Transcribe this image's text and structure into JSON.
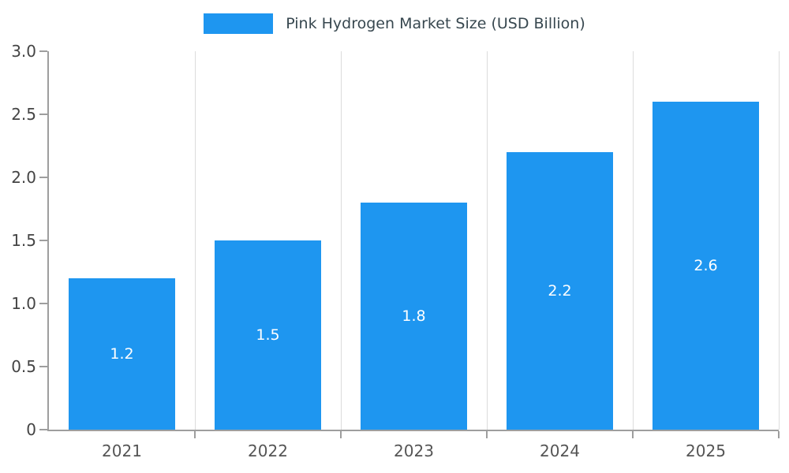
{
  "chart_data": {
    "type": "bar",
    "title": "Pink Hydrogen Market Size (USD Billion)",
    "categories": [
      "2021",
      "2022",
      "2023",
      "2024",
      "2025"
    ],
    "values": [
      1.2,
      1.5,
      1.8,
      2.2,
      2.6
    ],
    "value_labels": [
      "1.2",
      "1.5",
      "1.8",
      "2.2",
      "2.6"
    ],
    "xlabel": "",
    "ylabel": "",
    "ylim": [
      0,
      3.0
    ],
    "y_tick_step": 0.5,
    "y_tick_labels": [
      "0",
      "0.5",
      "1.0",
      "1.5",
      "2.0",
      "2.5",
      "3.0"
    ],
    "grid": "vertical",
    "legend_position": "top",
    "colors": {
      "bar": "#1e96f0",
      "axis": "#9e9e9e",
      "gridline": "#dcdcdc",
      "tick_text": "#444444",
      "title_text": "#37474f",
      "bar_label_text": "#ffffff"
    }
  }
}
